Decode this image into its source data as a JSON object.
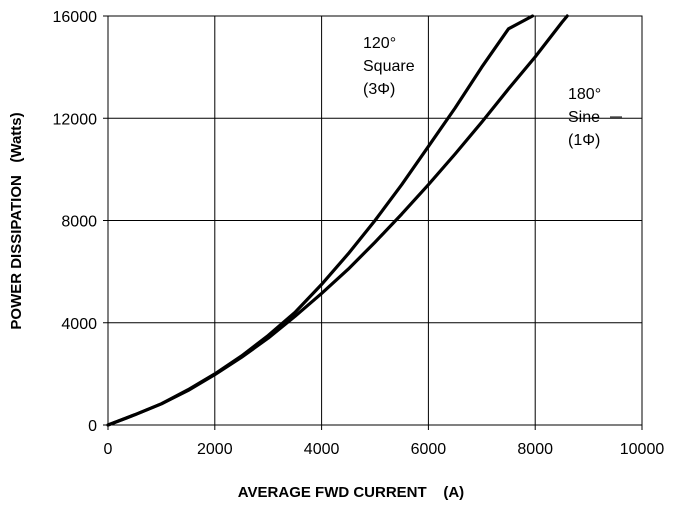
{
  "chart_data": {
    "type": "line",
    "title": "",
    "xlabel": "AVERAGE FWD CURRENT    (A)",
    "ylabel": "POWER DISSIPATION   (Watts)",
    "xlim": [
      0,
      10000
    ],
    "ylim": [
      0,
      16000
    ],
    "x_ticks": [
      "0",
      "2000",
      "4000",
      "6000",
      "8000",
      "10000"
    ],
    "y_ticks": [
      "0",
      "4000",
      "8000",
      "12000",
      "16000"
    ],
    "grid": true,
    "legend": "none",
    "line_color": "#000000",
    "series": [
      {
        "x": [
          0,
          500,
          1000,
          1500,
          2000,
          2500,
          3000,
          3500,
          4000,
          4500,
          5000,
          5500,
          6000,
          6500,
          7000,
          7500,
          7950
        ],
        "y": [
          0,
          400,
          830,
          1380,
          2000,
          2700,
          3500,
          4400,
          5500,
          6700,
          8000,
          9400,
          10900,
          12400,
          14000,
          15500,
          16000
        ]
      },
      {
        "x": [
          0,
          500,
          1000,
          1500,
          2000,
          2500,
          3000,
          3500,
          4000,
          4500,
          5000,
          5500,
          6000,
          6500,
          7000,
          7500,
          8000,
          8500,
          8600
        ],
        "y": [
          0,
          400,
          830,
          1350,
          1970,
          2650,
          3400,
          4250,
          5150,
          6100,
          7150,
          8250,
          9400,
          10600,
          11850,
          13150,
          14400,
          15750,
          16000
        ]
      }
    ],
    "annotations": [
      {
        "lines": [
          "120°",
          "Square",
          "(3Φ)"
        ]
      },
      {
        "lines": [
          "180°",
          "Sine",
          "(1Φ)"
        ]
      }
    ]
  }
}
